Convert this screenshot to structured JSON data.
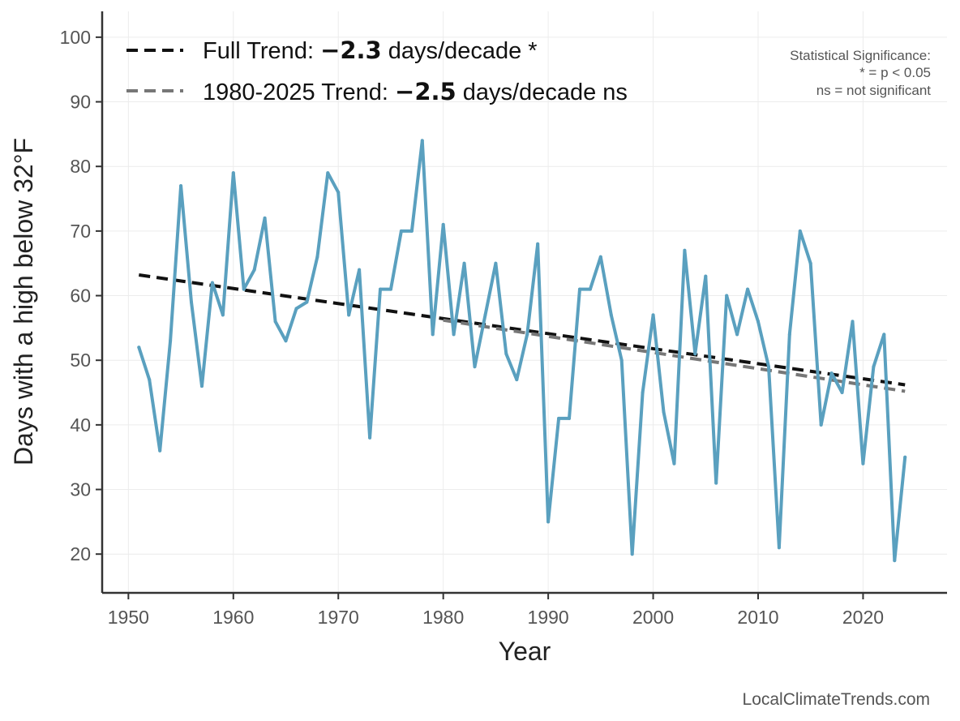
{
  "chart_data": {
    "type": "line",
    "xlabel": "Year",
    "ylabel": "Days with a high below 32°F",
    "xlim": [
      1947.5,
      2028
    ],
    "ylim": [
      14,
      104
    ],
    "xticks": [
      1950,
      1960,
      1970,
      1980,
      1990,
      2000,
      2010,
      2020
    ],
    "yticks": [
      20,
      30,
      40,
      50,
      60,
      70,
      80,
      90,
      100
    ],
    "grid": true,
    "legend_position": "top-left",
    "series": [
      {
        "color": "#5aa0bf",
        "style": "solid",
        "x": [
          1951,
          1952,
          1953,
          1954,
          1955,
          1956,
          1957,
          1958,
          1959,
          1960,
          1961,
          1962,
          1963,
          1964,
          1965,
          1966,
          1967,
          1968,
          1969,
          1970,
          1971,
          1972,
          1973,
          1974,
          1975,
          1976,
          1977,
          1978,
          1979,
          1980,
          1981,
          1982,
          1983,
          1984,
          1985,
          1986,
          1987,
          1988,
          1989,
          1990,
          1991,
          1992,
          1993,
          1994,
          1995,
          1996,
          1997,
          1998,
          1999,
          2000,
          2001,
          2002,
          2003,
          2004,
          2005,
          2006,
          2007,
          2008,
          2009,
          2010,
          2011,
          2012,
          2013,
          2014,
          2015,
          2016,
          2017,
          2018,
          2019,
          2020,
          2021,
          2022,
          2023,
          2024
        ],
        "values": [
          52,
          47,
          36,
          53,
          77,
          59,
          46,
          62,
          57,
          79,
          61,
          64,
          72,
          56,
          53,
          58,
          59,
          66,
          79,
          76,
          57,
          64,
          38,
          61,
          61,
          70,
          70,
          84,
          54,
          71,
          54,
          65,
          49,
          57,
          65,
          51,
          47,
          54,
          68,
          25,
          41,
          41,
          61,
          61,
          66,
          57,
          50,
          20,
          45,
          57,
          42,
          34,
          67,
          51,
          63,
          31,
          60,
          54,
          61,
          56,
          49,
          21,
          54,
          70,
          65,
          40,
          48,
          45,
          56,
          34,
          49,
          54,
          19,
          35
        ]
      }
    ],
    "trend_lines": [
      {
        "label_prefix": "Full Trend: ",
        "label_value": "−2.3",
        "label_suffix": " days/decade *",
        "color": "#111111",
        "style": "dashed",
        "x": [
          1951,
          2024
        ],
        "values": [
          63.2,
          46.2
        ]
      },
      {
        "label_prefix": "1980-2025 Trend: ",
        "label_value": "−2.5",
        "label_suffix": " days/decade ns",
        "color": "#777777",
        "style": "dashed",
        "x": [
          1980,
          2024
        ],
        "values": [
          56.2,
          45.2
        ]
      }
    ],
    "annotations": {
      "significance_lines": [
        "Statistical Significance:",
        "* = p < 0.05",
        "ns = not significant"
      ],
      "credit": "LocalClimateTrends.com"
    }
  }
}
